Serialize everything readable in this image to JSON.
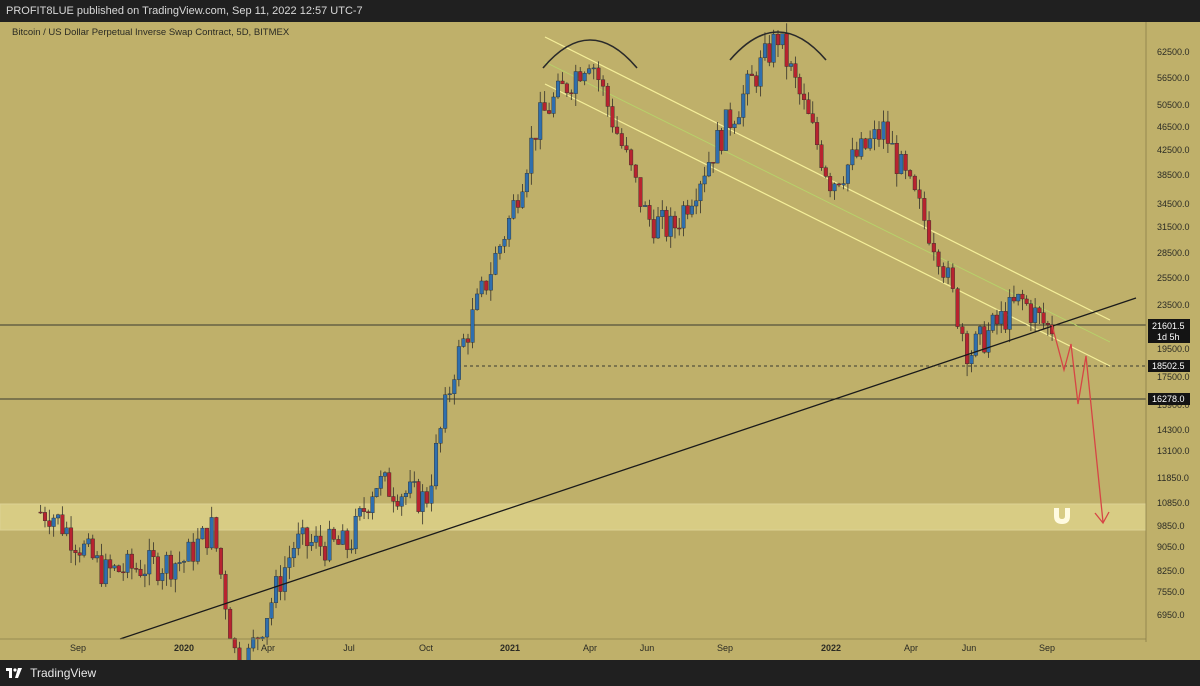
{
  "header": {
    "published_text": "PROFIT8LUE published on TradingView.com, Sep 11, 2022 12:57 UTC-7"
  },
  "chart": {
    "symbol_label": "Bitcoin / US Dollar Perpetual Inverse Swap Contract, 5D, BITMEX"
  },
  "footer": {
    "brand": "TradingView"
  },
  "colors": {
    "background": "#bfb06a",
    "bull_candle": "#2f6fae",
    "bear_candle": "#b8232f",
    "wick": "#33302a",
    "channel_lines": "#f5ef9a",
    "channel_mid": "#b7d46a",
    "trendline": "#1a1a1a",
    "projection": "#d64545",
    "demand_zone": "#ede49a"
  },
  "chart_data": {
    "type": "candlestick",
    "title": "Bitcoin / US Dollar Perpetual Inverse Swap Contract, 5D, BITMEX",
    "y_axis_ticks": [
      "62500.0",
      "56500.0",
      "50500.0",
      "46500.0",
      "42500.0",
      "38500.0",
      "34500.0",
      "31500.0",
      "28500.0",
      "25500.0",
      "23500.0",
      "19500.0",
      "17500.0",
      "15900.0",
      "14300.0",
      "13100.0",
      "11850.0",
      "10850.0",
      "9850.0",
      "9050.0",
      "8250.0",
      "7550.0",
      "6950.0"
    ],
    "x_axis_ticks": [
      "Sep",
      "2020",
      "Apr",
      "Jul",
      "Oct",
      "2021",
      "Apr",
      "Jun",
      "Sep",
      "2022",
      "Apr",
      "Jun",
      "Sep"
    ],
    "price_labels": [
      {
        "value": "21601.5",
        "sub": "1d 5h"
      },
      {
        "value": "18502.5"
      },
      {
        "value": "16278.0"
      }
    ],
    "horizontal_levels": [
      21601.5,
      18502.5,
      16278.0
    ],
    "demand_zone": [
      9700,
      10950
    ],
    "y_scale": "log",
    "approx_series": [
      {
        "date": "2019-08",
        "close": 10500
      },
      {
        "date": "2019-10",
        "close": 8300
      },
      {
        "date": "2020-01",
        "close": 8700
      },
      {
        "date": "2020-02",
        "close": 9900
      },
      {
        "date": "2020-03",
        "close": 5500
      },
      {
        "date": "2020-05",
        "close": 9300
      },
      {
        "date": "2020-07",
        "close": 9200
      },
      {
        "date": "2020-08",
        "close": 11800
      },
      {
        "date": "2020-10",
        "close": 11000
      },
      {
        "date": "2020-11",
        "close": 18500
      },
      {
        "date": "2021-01",
        "close": 33000
      },
      {
        "date": "2021-02",
        "close": 48000
      },
      {
        "date": "2021-04",
        "close": 62500
      },
      {
        "date": "2021-06",
        "close": 33000
      },
      {
        "date": "2021-07",
        "close": 31500
      },
      {
        "date": "2021-09",
        "close": 47000
      },
      {
        "date": "2021-11",
        "close": 67000
      },
      {
        "date": "2022-01",
        "close": 38000
      },
      {
        "date": "2022-03",
        "close": 46500
      },
      {
        "date": "2022-05",
        "close": 29000
      },
      {
        "date": "2022-06",
        "close": 19500
      },
      {
        "date": "2022-08",
        "close": 24000
      },
      {
        "date": "2022-09",
        "close": 21601.5
      }
    ]
  }
}
